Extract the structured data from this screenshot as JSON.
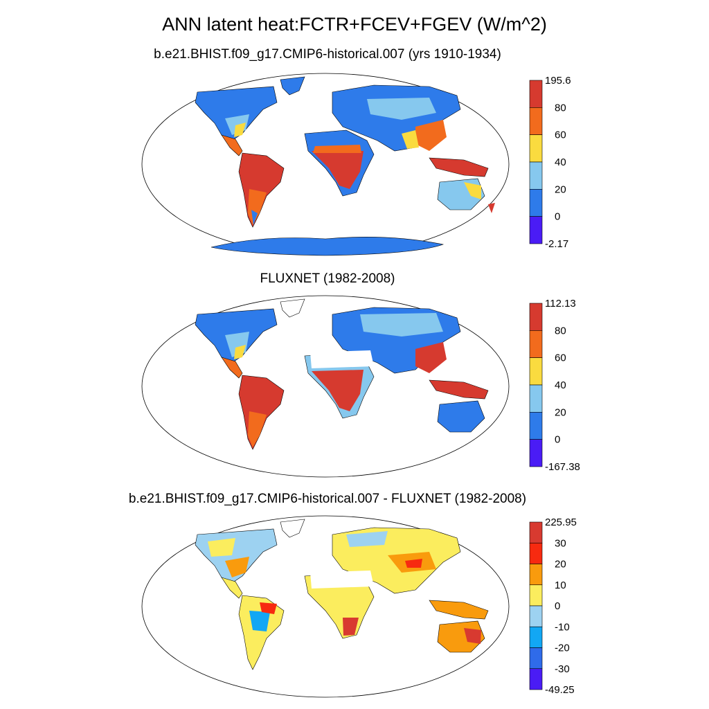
{
  "title": "ANN latent heat:FCTR+FCEV+FGEV (W/m^2)",
  "panels": [
    {
      "subtitle": "b.e21.BHIST.f09_g17.CMIP6-historical.007 (yrs 1910-1934)",
      "colorbar": {
        "labels": [
          "195.6",
          "80",
          "60",
          "40",
          "20",
          "0",
          "-2.17"
        ],
        "colors": [
          "#d63a2f",
          "#f26b1d",
          "#fadb3f",
          "#86c8ee",
          "#2e7bea",
          "#4a1cf5"
        ]
      }
    },
    {
      "subtitle": "FLUXNET (1982-2008)",
      "colorbar": {
        "labels": [
          "112.13",
          "80",
          "60",
          "40",
          "20",
          "0",
          "-167.38"
        ],
        "colors": [
          "#d63a2f",
          "#f26b1d",
          "#fadb3f",
          "#86c8ee",
          "#2e7bea",
          "#4a1cf5"
        ]
      }
    },
    {
      "subtitle": "b.e21.BHIST.f09_g17.CMIP6-historical.007 - FLUXNET (1982-2008)",
      "colorbar": {
        "labels": [
          "225.95",
          "30",
          "20",
          "10",
          "0",
          "-10",
          "-20",
          "-30",
          "-49.25"
        ],
        "colors": [
          "#d83a30",
          "#f72a10",
          "#f99b0d",
          "#fbed5e",
          "#9dd2f1",
          "#12a7f4",
          "#2f6bea",
          "#4a1cf5"
        ]
      }
    }
  ]
}
